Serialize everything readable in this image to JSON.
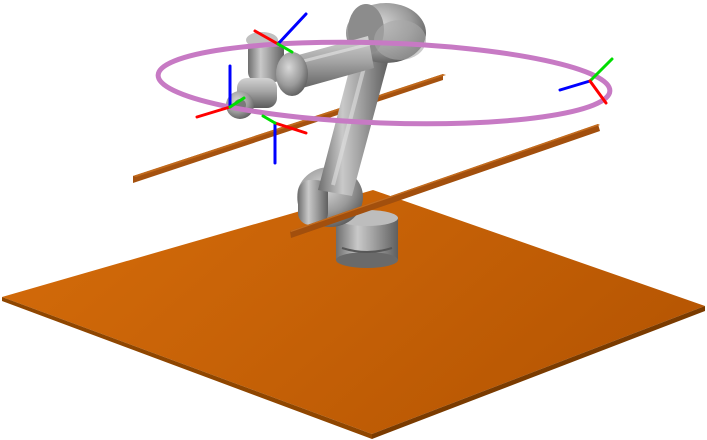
{
  "scene": {
    "background_color": "#ffffff",
    "floor_color": "#c46106",
    "floor_edge_color": "#8a4200",
    "bar_color": "#a7520e",
    "robot_color": "#9a9a9a",
    "trajectory_color": "#c77ac4",
    "frame_axis_colors": {
      "x": "#ff0000",
      "y": "#00dd00",
      "z": "#0000ff"
    },
    "coordinate_frame_count": 4
  }
}
